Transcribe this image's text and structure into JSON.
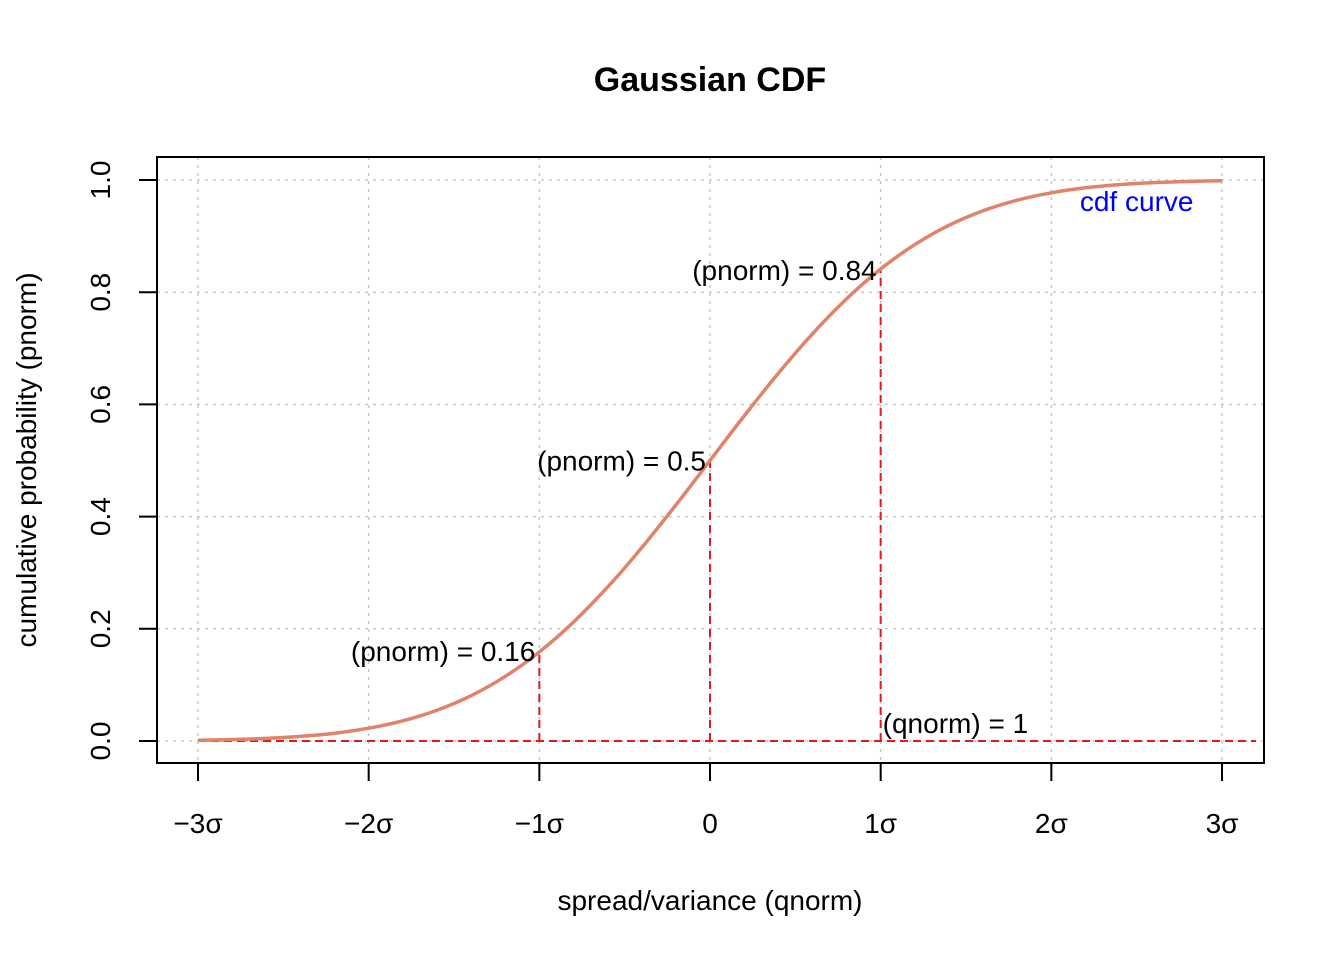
{
  "chart_data": {
    "type": "line",
    "title": "Gaussian CDF",
    "xlabel": "spread/variance (qnorm)",
    "ylabel": "cumulative probability (pnorm)",
    "xlim": [
      -3,
      3
    ],
    "ylim": [
      0,
      1
    ],
    "x_ticks": [
      {
        "value": -3,
        "label": "−3σ"
      },
      {
        "value": -2,
        "label": "−2σ"
      },
      {
        "value": -1,
        "label": "−1σ"
      },
      {
        "value": 0,
        "label": "0"
      },
      {
        "value": 1,
        "label": "1σ"
      },
      {
        "value": 2,
        "label": "2σ"
      },
      {
        "value": 3,
        "label": "3σ"
      }
    ],
    "y_ticks": [
      {
        "value": 0.0,
        "label": "0.0"
      },
      {
        "value": 0.2,
        "label": "0.2"
      },
      {
        "value": 0.4,
        "label": "0.4"
      },
      {
        "value": 0.6,
        "label": "0.6"
      },
      {
        "value": 0.8,
        "label": "0.8"
      },
      {
        "value": 1.0,
        "label": "1.0"
      }
    ],
    "grid": true,
    "series": [
      {
        "label": "cdf curve",
        "color": "#e0836a",
        "x": [
          -3.0,
          -2.8,
          -2.6,
          -2.4,
          -2.2,
          -2.0,
          -1.8,
          -1.6,
          -1.4,
          -1.2,
          -1.0,
          -0.8,
          -0.6,
          -0.4,
          -0.2,
          0.0,
          0.2,
          0.4,
          0.6,
          0.8,
          1.0,
          1.2,
          1.4,
          1.6,
          1.8,
          2.0,
          2.2,
          2.4,
          2.6,
          2.8,
          3.0
        ],
        "y": [
          0.0013,
          0.0026,
          0.0047,
          0.0082,
          0.0139,
          0.0228,
          0.0359,
          0.0548,
          0.0808,
          0.1151,
          0.1587,
          0.2119,
          0.2743,
          0.3446,
          0.4207,
          0.5,
          0.5793,
          0.6554,
          0.7257,
          0.7881,
          0.8413,
          0.8849,
          0.9192,
          0.9452,
          0.9641,
          0.9772,
          0.9861,
          0.9918,
          0.9953,
          0.9974,
          0.9987
        ]
      }
    ],
    "curve_label": {
      "text": "cdf curve",
      "color": "#0000ff",
      "x": 2.5,
      "y": 0.945
    },
    "reference_lines": {
      "color": "#e31a1c",
      "horizontal": {
        "y": 0,
        "from": -3,
        "to": 3.2
      },
      "vertical": [
        {
          "x": -1,
          "y": 0.16
        },
        {
          "x": 0,
          "y": 0.5
        },
        {
          "x": 1,
          "y": 0.84
        }
      ]
    },
    "annotations": [
      {
        "text": "(pnorm) = 0.16",
        "x": -1,
        "y": 0.16,
        "anchor": "end"
      },
      {
        "text": "(pnorm) = 0.5",
        "x": 0,
        "y": 0.5,
        "anchor": "end"
      },
      {
        "text": "(pnorm) = 0.84",
        "x": 1,
        "y": 0.84,
        "anchor": "end"
      },
      {
        "text": "(qnorm) = 1",
        "x": 1,
        "y": 0.0,
        "anchor": "start"
      }
    ]
  }
}
